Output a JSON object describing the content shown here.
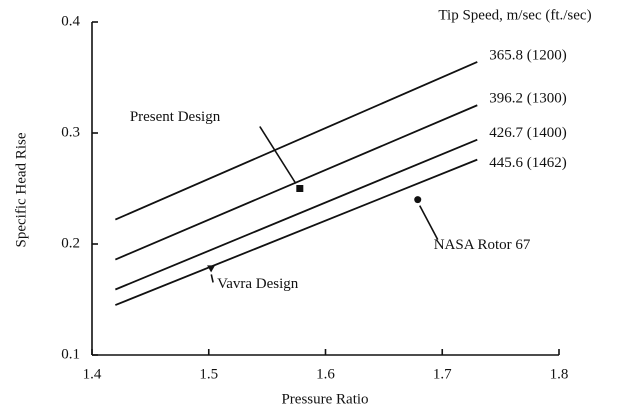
{
  "chart_data": {
    "type": "line",
    "subtitle": "Tip Speed, m/sec (ft./sec)",
    "xlabel": "Pressure Ratio",
    "ylabel": "Specific Head Rise",
    "xlim": [
      1.4,
      1.8
    ],
    "xticks": [
      1.4,
      1.5,
      1.6,
      1.7,
      1.8
    ],
    "ylim": [
      0.1,
      0.4
    ],
    "yticks": [
      0.1,
      0.2,
      0.3,
      0.4
    ],
    "color": "#111111",
    "series": [
      {
        "name": "365.8 (1200)",
        "x": [
          1.42,
          1.73
        ],
        "values": [
          0.222,
          0.364
        ]
      },
      {
        "name": "396.2 (1300)",
        "x": [
          1.42,
          1.73
        ],
        "values": [
          0.186,
          0.325
        ]
      },
      {
        "name": "426.7 (1400)",
        "x": [
          1.42,
          1.73
        ],
        "values": [
          0.159,
          0.294
        ]
      },
      {
        "name": "445.6 (1462)",
        "x": [
          1.42,
          1.73
        ],
        "values": [
          0.145,
          0.276
        ]
      }
    ],
    "annotations": [
      {
        "text": "Present Design",
        "x": 1.578,
        "y": 0.25,
        "marker": "square"
      },
      {
        "text": "NASA Rotor 67",
        "x": 1.679,
        "y": 0.24,
        "marker": "circle"
      },
      {
        "text": "Vavra Design",
        "x": 1.502,
        "y": 0.178,
        "marker": "triangle"
      }
    ]
  }
}
